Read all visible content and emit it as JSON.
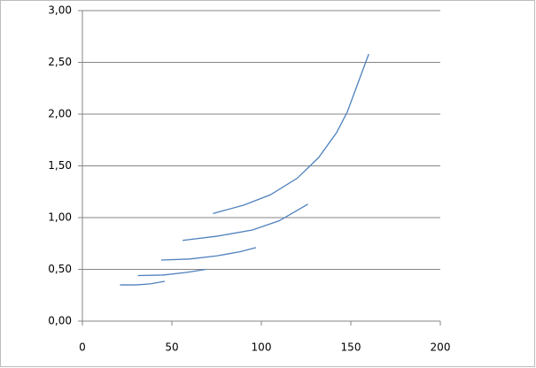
{
  "chart_data": {
    "type": "line",
    "series": [
      {
        "color": "#4f81bd",
        "x": [
          21,
          30,
          38,
          46
        ],
        "values": [
          0.35,
          0.35,
          0.36,
          0.385
        ]
      },
      {
        "color": "#4f81bd",
        "x": [
          31,
          45,
          58,
          69
        ],
        "values": [
          0.44,
          0.445,
          0.47,
          0.5
        ]
      },
      {
        "color": "#4f81bd",
        "x": [
          44,
          60,
          75,
          88,
          97
        ],
        "values": [
          0.59,
          0.6,
          0.63,
          0.67,
          0.71
        ]
      },
      {
        "color": "#4f81bd",
        "x": [
          56,
          75,
          95,
          110,
          126
        ],
        "values": [
          0.78,
          0.82,
          0.88,
          0.97,
          1.13
        ]
      },
      {
        "color": "#4f81bd",
        "x": [
          73,
          90,
          105,
          120,
          132,
          142,
          148,
          154,
          160
        ],
        "values": [
          1.04,
          1.12,
          1.22,
          1.38,
          1.58,
          1.82,
          2.02,
          2.3,
          2.58
        ]
      }
    ],
    "xlim": [
      0,
      200
    ],
    "xticks": [
      0,
      50,
      100,
      150,
      200
    ],
    "ylim": [
      0,
      3
    ],
    "yticks": [
      {
        "value": 0,
        "label": "0,00"
      },
      {
        "value": 0.5,
        "label": "0,50"
      },
      {
        "value": 1,
        "label": "1,00"
      },
      {
        "value": 1.5,
        "label": "1,50"
      },
      {
        "value": 2,
        "label": "2,00"
      },
      {
        "value": 2.5,
        "label": "2,50"
      },
      {
        "value": 3,
        "label": "3,00"
      }
    ],
    "grid": true
  }
}
